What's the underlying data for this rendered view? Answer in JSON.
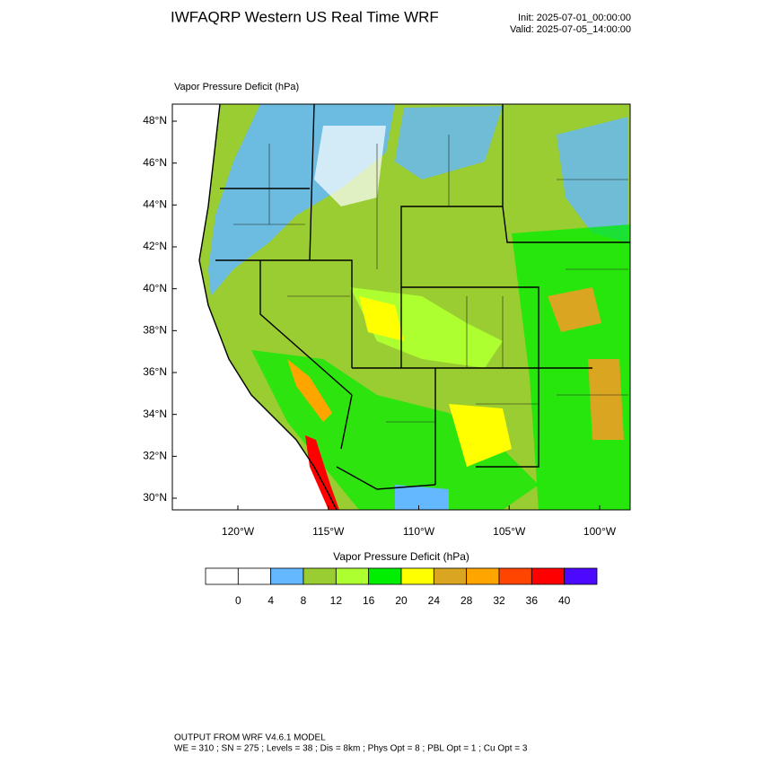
{
  "header": {
    "title": "IWFAQRP Western US Real Time WRF",
    "init": "Init: 2025-07-01_00:00:00",
    "valid": "Valid: 2025-07-05_14:00:00"
  },
  "map": {
    "label": "Vapor Pressure Deficit   (hPa)",
    "lat_ticks": [
      {
        "value": 48,
        "label": "48°N"
      },
      {
        "value": 46,
        "label": "46°N"
      },
      {
        "value": 44,
        "label": "44°N"
      },
      {
        "value": 42,
        "label": "42°N"
      },
      {
        "value": 40,
        "label": "40°N"
      },
      {
        "value": 38,
        "label": "38°N"
      },
      {
        "value": 36,
        "label": "36°N"
      },
      {
        "value": 34,
        "label": "34°N"
      },
      {
        "value": 32,
        "label": "32°N"
      },
      {
        "value": 30,
        "label": "30°N"
      }
    ],
    "lon_ticks": [
      {
        "value": -120,
        "label": "120°W"
      },
      {
        "value": -115,
        "label": "115°W"
      },
      {
        "value": -110,
        "label": "110°W"
      },
      {
        "value": -105,
        "label": "105°W"
      },
      {
        "value": -100,
        "label": "100°W"
      }
    ]
  },
  "colorbar": {
    "label": "Vapor Pressure Deficit  (hPa)",
    "levels": [
      0,
      4,
      8,
      12,
      16,
      20,
      24,
      28,
      32,
      36,
      40
    ],
    "colors": [
      "#ffffff",
      "#ffffff",
      "#63b8ff",
      "#9acd32",
      "#adff2f",
      "#00ee00",
      "#ffff00",
      "#daa520",
      "#ffa500",
      "#ff4500",
      "#ff0000",
      "#4b0aff"
    ]
  },
  "footer": {
    "line1": "OUTPUT FROM WRF V4.6.1 MODEL",
    "line2": "WE = 310 ; SN = 275 ; Levels = 38 ; Dis = 8km ; Phys Opt = 8 ; PBL Opt = 1 ; Cu Opt = 3"
  }
}
